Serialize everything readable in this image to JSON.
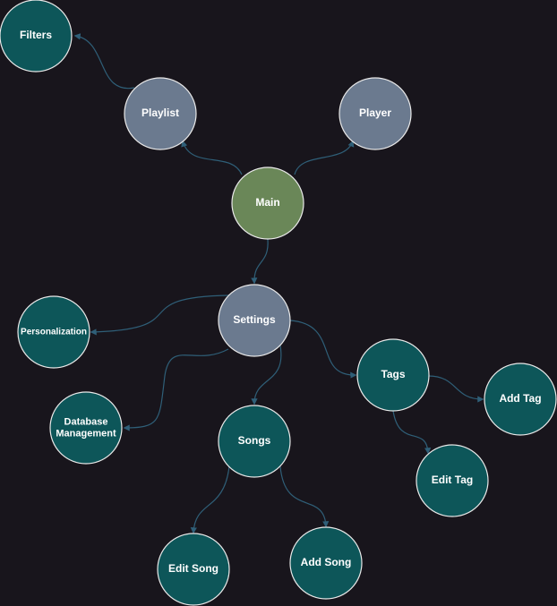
{
  "colors": {
    "background": "#18151c",
    "root_fill": "#6a8758",
    "primary_fill": "#6b7a8f",
    "secondary_fill": "#0d5659",
    "node_stroke": "#e8e8e8",
    "edge": "#2f5f78",
    "label": "#ffffff"
  },
  "nodes": [
    {
      "id": "main",
      "name": "node-main",
      "label": [
        "Main"
      ],
      "kind": "root"
    },
    {
      "id": "playlist",
      "name": "node-playlist",
      "label": [
        "Playlist"
      ],
      "kind": "primary"
    },
    {
      "id": "player",
      "name": "node-player",
      "label": [
        "Player"
      ],
      "kind": "primary"
    },
    {
      "id": "filters",
      "name": "node-filters",
      "label": [
        "Filters"
      ],
      "kind": "secondary"
    },
    {
      "id": "settings",
      "name": "node-settings",
      "label": [
        "Settings"
      ],
      "kind": "primary"
    },
    {
      "id": "personalization",
      "name": "node-personalization",
      "label": [
        "Personalization"
      ],
      "kind": "secondary"
    },
    {
      "id": "database",
      "name": "node-database-management",
      "label": [
        "Database",
        "Management"
      ],
      "kind": "secondary"
    },
    {
      "id": "songs",
      "name": "node-songs",
      "label": [
        "Songs"
      ],
      "kind": "secondary"
    },
    {
      "id": "tags",
      "name": "node-tags",
      "label": [
        "Tags"
      ],
      "kind": "secondary"
    },
    {
      "id": "addtag",
      "name": "node-add-tag",
      "label": [
        "Add Tag"
      ],
      "kind": "secondary"
    },
    {
      "id": "edittag",
      "name": "node-edit-tag",
      "label": [
        "Edit Tag"
      ],
      "kind": "secondary"
    },
    {
      "id": "editsong",
      "name": "node-edit-song",
      "label": [
        "Edit Song"
      ],
      "kind": "secondary"
    },
    {
      "id": "addsong",
      "name": "node-add-song",
      "label": [
        "Add Song"
      ],
      "kind": "secondary"
    }
  ],
  "edges": [
    {
      "from": "main",
      "to": "playlist"
    },
    {
      "from": "main",
      "to": "player"
    },
    {
      "from": "main",
      "to": "settings"
    },
    {
      "from": "playlist",
      "to": "filters"
    },
    {
      "from": "settings",
      "to": "personalization"
    },
    {
      "from": "settings",
      "to": "database"
    },
    {
      "from": "settings",
      "to": "songs"
    },
    {
      "from": "settings",
      "to": "tags"
    },
    {
      "from": "tags",
      "to": "addtag"
    },
    {
      "from": "tags",
      "to": "edittag"
    },
    {
      "from": "songs",
      "to": "editsong"
    },
    {
      "from": "songs",
      "to": "addsong"
    }
  ]
}
